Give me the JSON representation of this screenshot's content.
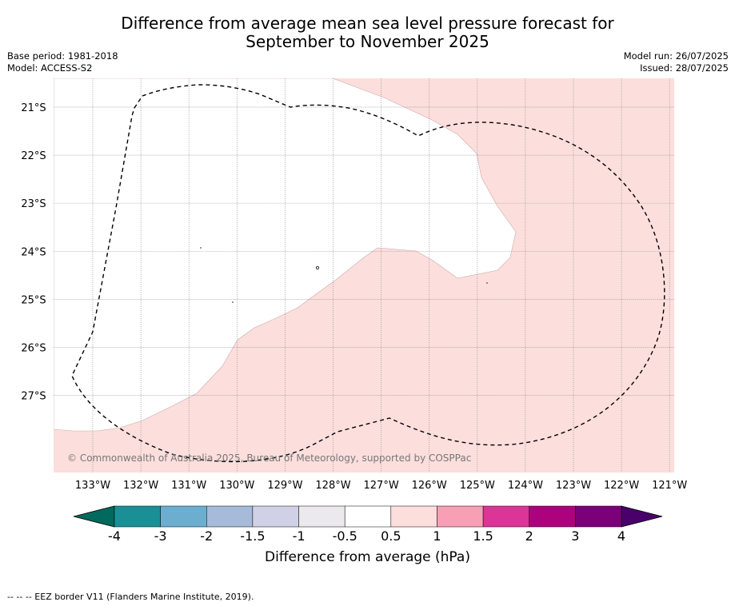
{
  "header": {
    "title_line1": "Difference from average mean sea level pressure forecast for",
    "title_line2": "September to November 2025",
    "base_period": "Base period: 1981-2018",
    "model": "Model: ACCESS-S2",
    "model_run": "Model run: 26/07/2025",
    "issued": "Issued: 28/07/2025"
  },
  "map": {
    "lat_labels": [
      "21°S",
      "22°S",
      "23°S",
      "24°S",
      "25°S",
      "26°S",
      "27°S"
    ],
    "lon_labels": [
      "133°W",
      "132°W",
      "131°W",
      "130°W",
      "129°W",
      "128°W",
      "127°W",
      "126°W",
      "125°W",
      "124°W",
      "123°W",
      "122°W",
      "121°W"
    ],
    "copyright": "© Commonwealth of Australia 2025, Bureau of Meteorology, supported by COSPPac",
    "colors": {
      "ocean_pink": "#fcdedd",
      "land_white": "#ffffff",
      "grid": "#888888",
      "eez_line": "#000000"
    }
  },
  "colorbar": {
    "ticks": [
      "-4",
      "-3",
      "-2",
      "-1.5",
      "-1",
      "-0.5",
      "0.5",
      "1",
      "1.5",
      "2",
      "3",
      "4"
    ],
    "colors": [
      "#1a9096",
      "#6baed0",
      "#a6bad9",
      "#d0d1e6",
      "#ebe9ee",
      "#ffffff",
      "#fcdedd",
      "#f89fb6",
      "#dd3497",
      "#ae017e",
      "#7a0177"
    ],
    "under_color": "#02695f",
    "over_color": "#49006a",
    "label": "Difference from average (hPa)"
  },
  "footer": {
    "legend": "--  --  -- EEZ border V11 (Flanders Marine Institute, 2019)."
  }
}
